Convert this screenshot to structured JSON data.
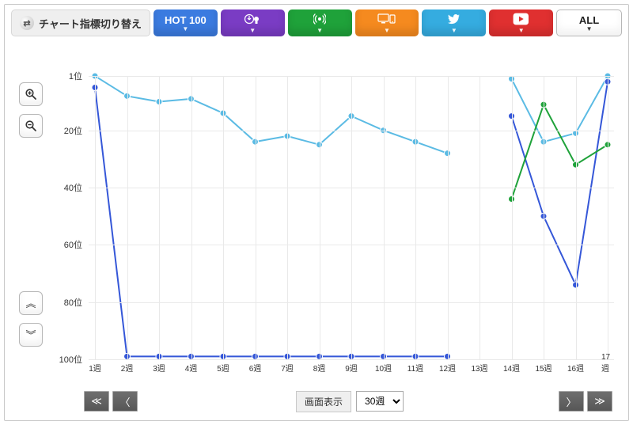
{
  "switcher": {
    "label": "チャート指標切り替え"
  },
  "tabs": [
    {
      "id": "hot100",
      "label": "HOT 100",
      "color": "#3b7be0"
    },
    {
      "id": "download",
      "label": "",
      "color": "#7a3cc4",
      "icon": "download"
    },
    {
      "id": "stream",
      "label": "",
      "color": "#1fa23a",
      "icon": "antenna"
    },
    {
      "id": "lookup",
      "label": "",
      "color": "#f58a1f",
      "icon": "devices"
    },
    {
      "id": "twitter",
      "label": "",
      "color": "#35ace0",
      "icon": "twitter"
    },
    {
      "id": "youtube",
      "label": "",
      "color": "#e03030",
      "icon": "youtube"
    },
    {
      "id": "all",
      "label": "ALL",
      "color": "#ffffff"
    }
  ],
  "icon_labels": {
    "zoom_in": "zoom-in-icon",
    "zoom_out": "zoom-out-icon",
    "scroll_up": "scroll-up-icon",
    "scroll_down": "scroll-down-icon",
    "first": "first-page-icon",
    "prev": "prev-page-icon",
    "next": "next-page-icon",
    "last": "last-page-icon"
  },
  "chart": {
    "type": "line",
    "x_categories": [
      "1週",
      "2週",
      "3週",
      "4週",
      "5週",
      "6週",
      "7週",
      "8週",
      "9週",
      "10週",
      "11週",
      "12週",
      "13週",
      "14週",
      "15週",
      "16週",
      "17週"
    ],
    "y_ticks": [
      1,
      20,
      40,
      60,
      80,
      100
    ],
    "y_tick_labels": [
      "1位",
      "20位",
      "40位",
      "60位",
      "80位",
      "100位"
    ],
    "ylim": [
      1,
      100
    ],
    "background_color": "#ffffff",
    "grid_color": "#e9e9e9",
    "axis_font_size": 11,
    "marker_radius": 4,
    "line_width": 2,
    "series": [
      {
        "name": "main-light-blue",
        "color": "#5bbbe4",
        "marker_fill": "#5bbbe4",
        "values": [
          1,
          8,
          10,
          9,
          14,
          24,
          22,
          25,
          15,
          20,
          24,
          28,
          null,
          2,
          24,
          21,
          1
        ]
      },
      {
        "name": "main-blue",
        "color": "#3557d8",
        "marker_fill": "#3557d8",
        "values": [
          5,
          99,
          99,
          99,
          99,
          99,
          99,
          99,
          99,
          99,
          99,
          99,
          null,
          15,
          50,
          74,
          3
        ]
      },
      {
        "name": "green",
        "color": "#1fa23a",
        "marker_fill": "#1fa23a",
        "values": [
          null,
          null,
          null,
          null,
          null,
          null,
          null,
          null,
          null,
          null,
          null,
          null,
          null,
          44,
          11,
          32,
          25
        ]
      }
    ]
  },
  "controls": {
    "display_label": "画面表示",
    "range_selected": "30週",
    "range_options": [
      "30週"
    ]
  }
}
